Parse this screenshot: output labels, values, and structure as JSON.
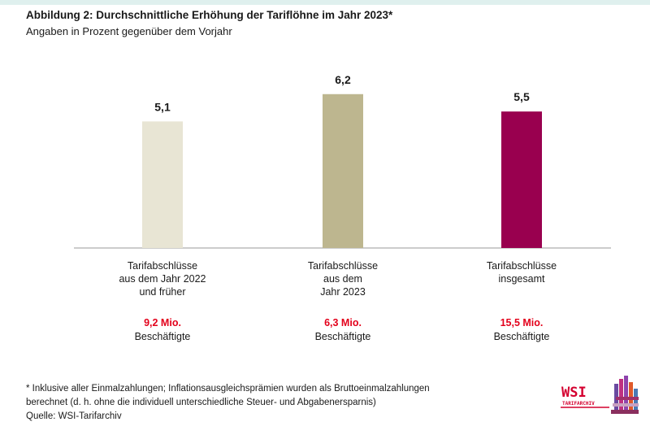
{
  "header": {
    "title": "Abbildung 2: Durchschnittliche Erhöhung der Tariflöhne im Jahr 2023*",
    "subtitle": "Angaben in Prozent gegenüber dem Vorjahr"
  },
  "chart_data": {
    "type": "bar",
    "categories": [
      [
        "Tarifabschlüsse",
        "aus dem Jahr 2022",
        "und früher"
      ],
      [
        "Tarifabschlüsse",
        "aus dem",
        "Jahr 2023"
      ],
      [
        "Tarifabschlüsse",
        "insgesamt"
      ]
    ],
    "values": [
      5.1,
      6.2,
      5.5
    ],
    "value_labels": [
      "5,1",
      "6,2",
      "5,5"
    ],
    "colors": [
      "#e8e5d4",
      "#bdb68f",
      "#99004f"
    ],
    "employees": [
      {
        "value": "9,2 Mio.",
        "label": "Beschäftigte"
      },
      {
        "value": "6,3 Mio.",
        "label": "Beschäftigte"
      },
      {
        "value": "15,5 Mio.",
        "label": "Beschäftigte"
      }
    ],
    "title": "Abbildung 2: Durchschnittliche Erhöhung der Tariflöhne im Jahr 2023*",
    "ylabel": "",
    "ylim": [
      0,
      7.7
    ],
    "grid": false
  },
  "footnote": {
    "lines": [
      "* Inklusive aller Einmalzahlungen; Inflationsausgleichsprämien wurden als Bruttoeinmalzahlungen",
      "berechnet (d. h. ohne die individuell unterschiedliche Steuer- und Abgabenersparnis)"
    ],
    "source": "Quelle: WSI-Tarifarchiv"
  },
  "logo": {
    "name": "WSI",
    "sub": "TARIFARCHIV"
  }
}
